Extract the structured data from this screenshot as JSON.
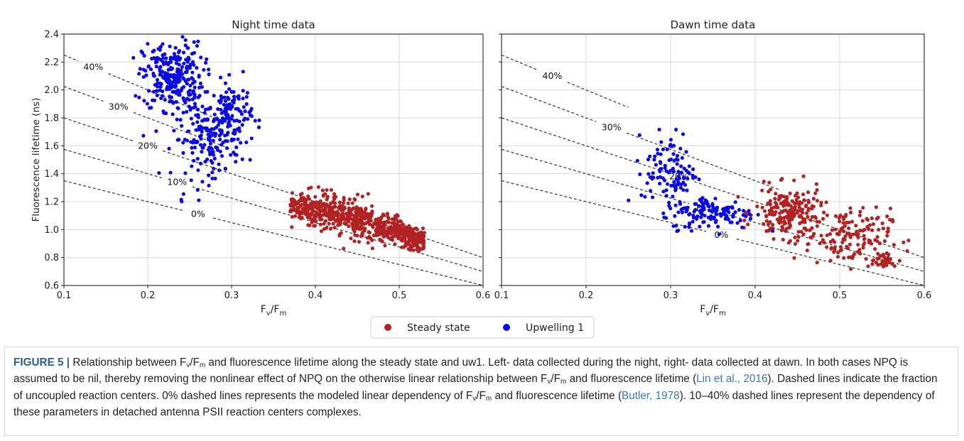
{
  "chart_data": [
    {
      "type": "scatter",
      "title": "Night time data",
      "xlabel": "Fv/Fm",
      "ylabel": "Fluorescence lifetime (ns)",
      "xlim": [
        0.1,
        0.6
      ],
      "ylim": [
        0.6,
        2.4
      ],
      "xticks": [
        "0.1",
        "0.2",
        "0.3",
        "0.4",
        "0.5",
        "0.6"
      ],
      "yticks": [
        "0.6",
        "0.8",
        "1.0",
        "1.2",
        "1.4",
        "1.6",
        "1.8",
        "2.0",
        "2.2",
        "2.4"
      ],
      "grid": true,
      "reference_lines": [
        {
          "label": "0%",
          "slope": -1.5,
          "intercept": 1.5,
          "label_x": 0.26,
          "x_start": 0.1,
          "x_end": 0.6
        },
        {
          "label": "10%",
          "slope": -1.75,
          "intercept": 1.75,
          "label_x": 0.235,
          "x_start": 0.1,
          "x_end": 0.6
        },
        {
          "label": "20%",
          "slope": -2.0,
          "intercept": 2.0,
          "label_x": 0.2,
          "x_start": 0.1,
          "x_end": 0.6
        },
        {
          "label": "30%",
          "slope": -2.25,
          "intercept": 2.25,
          "label_x": 0.165,
          "x_start": 0.1,
          "x_end": 0.3
        },
        {
          "label": "40%",
          "slope": -2.5,
          "intercept": 2.5,
          "label_x": 0.135,
          "x_start": 0.1,
          "x_end": 0.3
        }
      ],
      "series": [
        {
          "name": "Steady state",
          "color": "#b22222",
          "clusters": [
            {
              "x_range": [
                0.37,
                0.53
              ],
              "cx": 0.44,
              "cy": 1.12,
              "sx": 0.035,
              "sy": 0.1,
              "n": 700,
              "line_slope": -2.0,
              "line_int": 1.98
            }
          ]
        },
        {
          "name": "Upwelling 1",
          "color": "#0a0ae6",
          "clusters": [
            {
              "cx": 0.23,
              "cy": 2.1,
              "sx": 0.018,
              "sy": 0.12,
              "n": 260
            },
            {
              "cx": 0.27,
              "cy": 1.65,
              "sx": 0.02,
              "sy": 0.14,
              "n": 160
            },
            {
              "cx": 0.3,
              "cy": 1.82,
              "sx": 0.012,
              "sy": 0.12,
              "n": 110
            },
            {
              "cx": 0.24,
              "cy": 1.21,
              "sx": 0.004,
              "sy": 0.01,
              "n": 2
            }
          ]
        }
      ]
    },
    {
      "type": "scatter",
      "title": "Dawn time data",
      "xlabel": "Fv/Fm",
      "ylabel": "",
      "xlim": [
        0.1,
        0.6
      ],
      "ylim": [
        0.6,
        2.4
      ],
      "xticks": [
        "0.1",
        "0.2",
        "0.3",
        "0.4",
        "0.5",
        "0.6"
      ],
      "grid": true,
      "reference_lines": [
        {
          "label": "0%",
          "slope": -1.5,
          "intercept": 1.5,
          "label_x": 0.36,
          "x_start": 0.1,
          "x_end": 0.6
        },
        {
          "label": "10%",
          "slope": -1.75,
          "intercept": 1.75,
          "label_x": 0.34,
          "x_start": 0.1,
          "x_end": 0.6
        },
        {
          "label": "20%",
          "slope": -2.0,
          "intercept": 2.0,
          "label_x": 0.31,
          "x_start": 0.1,
          "x_end": 0.6
        },
        {
          "label": "30%",
          "slope": -2.25,
          "intercept": 2.25,
          "label_x": 0.23,
          "x_start": 0.1,
          "x_end": 0.43
        },
        {
          "label": "40%",
          "slope": -2.5,
          "intercept": 2.5,
          "label_x": 0.16,
          "x_start": 0.1,
          "x_end": 0.25
        }
      ],
      "series": [
        {
          "name": "Steady state",
          "color": "#b22222",
          "clusters": [
            {
              "cx": 0.44,
              "cy": 1.12,
              "sx": 0.02,
              "sy": 0.09,
              "n": 200
            },
            {
              "cx": 0.51,
              "cy": 0.95,
              "sx": 0.025,
              "sy": 0.1,
              "n": 140
            },
            {
              "cx": 0.55,
              "cy": 0.78,
              "sx": 0.01,
              "sy": 0.03,
              "n": 40
            }
          ]
        },
        {
          "name": "Upwelling 1",
          "color": "#0a0ae6",
          "clusters": [
            {
              "cx": 0.3,
              "cy": 1.42,
              "sx": 0.015,
              "sy": 0.14,
              "n": 110
            },
            {
              "cx": 0.35,
              "cy": 1.12,
              "sx": 0.025,
              "sy": 0.06,
              "n": 130
            }
          ]
        }
      ]
    }
  ],
  "legend": {
    "items": [
      {
        "label": "Steady state",
        "color": "#b22222"
      },
      {
        "label": "Upwelling 1",
        "color": "#0a0ae6"
      }
    ]
  },
  "caption": {
    "label": "FIGURE 5 |",
    "s1": " Relationship between F",
    "s2": "/F",
    "s3": " and fluorescence lifetime along the steady state and uw1. Left- data collected during the night, right- data collected at dawn. In both cases NPQ is assumed to be nil, thereby removing the nonlinear effect of NPQ on the otherwise linear relationship between F",
    "s4": "/F",
    "s5": " and fluorescence lifetime (",
    "ref1": "Lin et al., 2016",
    "s6": "). Dashed lines indicate the fraction of uncoupled reaction centers. 0% dashed lines represents the modeled linear dependency of F",
    "s7": "/F",
    "s8": " and fluorescence lifetime (",
    "ref2": "Butler, 1978",
    "s9": "). 10–40% dashed lines represent the dependency of these parameters in detached antenna PSII reaction centers complexes.",
    "sub_v": "v",
    "sub_m": "m"
  }
}
